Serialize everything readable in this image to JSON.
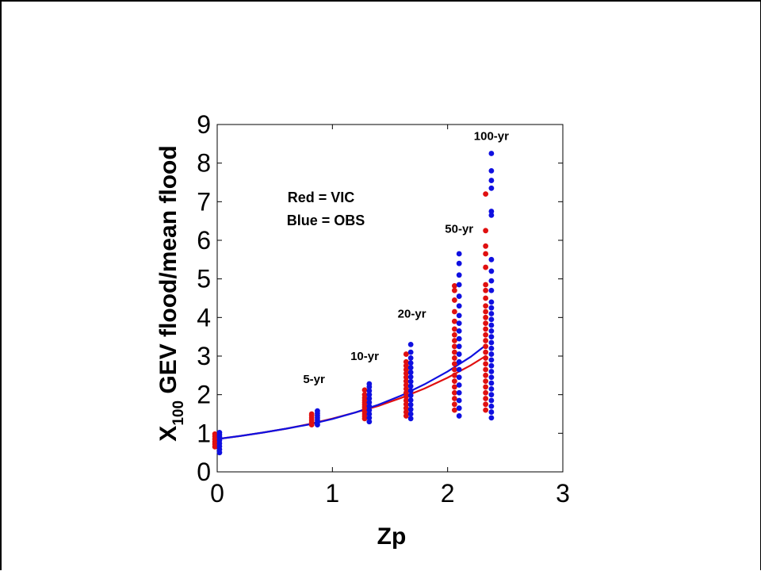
{
  "chart_data": {
    "type": "scatter",
    "xlabel": "Zp",
    "ylabel_main": "X",
    "ylabel_sub": "100",
    "ylabel_rest": " GEV flood/mean flood",
    "xlim": [
      0,
      3
    ],
    "ylim": [
      0,
      9
    ],
    "x_ticks": [
      "0",
      "1",
      "2",
      "3"
    ],
    "y_ticks": [
      "0",
      "1",
      "2",
      "3",
      "4",
      "5",
      "6",
      "7",
      "8",
      "9"
    ],
    "grid": false,
    "legend": [
      "Red = VIC",
      "Blue = OBS"
    ],
    "legend_placement": "upper-left",
    "colors": {
      "vic": "#e01010",
      "obs": "#1010e0"
    },
    "annotations": [
      {
        "text": "5-yr",
        "x": 0.84,
        "y": 2.3
      },
      {
        "text": "10-yr",
        "x": 1.28,
        "y": 2.9
      },
      {
        "text": "20-yr",
        "x": 1.69,
        "y": 4.0
      },
      {
        "text": "50-yr",
        "x": 2.1,
        "y": 6.2
      },
      {
        "text": "100-yr",
        "x": 2.38,
        "y": 8.6
      }
    ],
    "series": [
      {
        "name": "VIC",
        "color": "#e01010",
        "points": [
          [
            -0.02,
            0.65
          ],
          [
            -0.02,
            0.72
          ],
          [
            -0.02,
            0.78
          ],
          [
            -0.02,
            0.85
          ],
          [
            -0.02,
            0.92
          ],
          [
            -0.02,
            0.98
          ],
          [
            0.82,
            1.22
          ],
          [
            0.82,
            1.28
          ],
          [
            0.82,
            1.34
          ],
          [
            0.82,
            1.4
          ],
          [
            0.82,
            1.46
          ],
          [
            0.82,
            1.5
          ],
          [
            1.28,
            1.38
          ],
          [
            1.28,
            1.44
          ],
          [
            1.28,
            1.5
          ],
          [
            1.28,
            1.56
          ],
          [
            1.28,
            1.62
          ],
          [
            1.28,
            1.68
          ],
          [
            1.28,
            1.74
          ],
          [
            1.28,
            1.8
          ],
          [
            1.28,
            1.86
          ],
          [
            1.28,
            1.92
          ],
          [
            1.28,
            2.0
          ],
          [
            1.28,
            2.12
          ],
          [
            1.64,
            1.45
          ],
          [
            1.64,
            1.55
          ],
          [
            1.64,
            1.65
          ],
          [
            1.64,
            1.75
          ],
          [
            1.64,
            1.85
          ],
          [
            1.64,
            1.95
          ],
          [
            1.64,
            2.05
          ],
          [
            1.64,
            2.15
          ],
          [
            1.64,
            2.25
          ],
          [
            1.64,
            2.35
          ],
          [
            1.64,
            2.45
          ],
          [
            1.64,
            2.55
          ],
          [
            1.64,
            2.65
          ],
          [
            1.64,
            2.75
          ],
          [
            1.64,
            2.85
          ],
          [
            1.64,
            3.05
          ],
          [
            2.06,
            1.6
          ],
          [
            2.06,
            1.75
          ],
          [
            2.06,
            1.9
          ],
          [
            2.06,
            2.05
          ],
          [
            2.06,
            2.2
          ],
          [
            2.06,
            2.35
          ],
          [
            2.06,
            2.5
          ],
          [
            2.06,
            2.65
          ],
          [
            2.06,
            2.8
          ],
          [
            2.06,
            2.95
          ],
          [
            2.06,
            3.1
          ],
          [
            2.06,
            3.25
          ],
          [
            2.06,
            3.4
          ],
          [
            2.06,
            3.55
          ],
          [
            2.06,
            3.7
          ],
          [
            2.06,
            3.9
          ],
          [
            2.06,
            4.15
          ],
          [
            2.06,
            4.45
          ],
          [
            2.06,
            4.7
          ],
          [
            2.06,
            4.82
          ],
          [
            2.33,
            1.6
          ],
          [
            2.33,
            1.75
          ],
          [
            2.33,
            1.9
          ],
          [
            2.33,
            2.05
          ],
          [
            2.33,
            2.2
          ],
          [
            2.33,
            2.35
          ],
          [
            2.33,
            2.5
          ],
          [
            2.33,
            2.65
          ],
          [
            2.33,
            2.8
          ],
          [
            2.33,
            2.95
          ],
          [
            2.33,
            3.1
          ],
          [
            2.33,
            3.25
          ],
          [
            2.33,
            3.4
          ],
          [
            2.33,
            3.55
          ],
          [
            2.33,
            3.7
          ],
          [
            2.33,
            3.85
          ],
          [
            2.33,
            4.0
          ],
          [
            2.33,
            4.15
          ],
          [
            2.33,
            4.3
          ],
          [
            2.33,
            4.5
          ],
          [
            2.33,
            4.7
          ],
          [
            2.33,
            4.85
          ],
          [
            2.33,
            5.3
          ],
          [
            2.33,
            5.65
          ],
          [
            2.33,
            5.85
          ],
          [
            2.33,
            6.25
          ],
          [
            2.33,
            7.2
          ]
        ]
      },
      {
        "name": "OBS",
        "color": "#1010e0",
        "points": [
          [
            0.02,
            0.5
          ],
          [
            0.02,
            0.58
          ],
          [
            0.02,
            0.66
          ],
          [
            0.02,
            0.74
          ],
          [
            0.02,
            0.82
          ],
          [
            0.02,
            0.9
          ],
          [
            0.02,
            0.96
          ],
          [
            0.02,
            1.02
          ],
          [
            0.87,
            1.22
          ],
          [
            0.87,
            1.28
          ],
          [
            0.87,
            1.34
          ],
          [
            0.87,
            1.4
          ],
          [
            0.87,
            1.46
          ],
          [
            0.87,
            1.52
          ],
          [
            0.87,
            1.58
          ],
          [
            1.32,
            1.3
          ],
          [
            1.32,
            1.4
          ],
          [
            1.32,
            1.5
          ],
          [
            1.32,
            1.6
          ],
          [
            1.32,
            1.7
          ],
          [
            1.32,
            1.8
          ],
          [
            1.32,
            1.9
          ],
          [
            1.32,
            2.0
          ],
          [
            1.32,
            2.1
          ],
          [
            1.32,
            2.2
          ],
          [
            1.32,
            2.28
          ],
          [
            1.68,
            1.38
          ],
          [
            1.68,
            1.5
          ],
          [
            1.68,
            1.62
          ],
          [
            1.68,
            1.74
          ],
          [
            1.68,
            1.86
          ],
          [
            1.68,
            1.98
          ],
          [
            1.68,
            2.1
          ],
          [
            1.68,
            2.22
          ],
          [
            1.68,
            2.34
          ],
          [
            1.68,
            2.46
          ],
          [
            1.68,
            2.58
          ],
          [
            1.68,
            2.7
          ],
          [
            1.68,
            2.82
          ],
          [
            1.68,
            2.95
          ],
          [
            1.68,
            3.1
          ],
          [
            1.68,
            3.3
          ],
          [
            2.1,
            1.45
          ],
          [
            2.1,
            1.65
          ],
          [
            2.1,
            1.85
          ],
          [
            2.1,
            2.05
          ],
          [
            2.1,
            2.25
          ],
          [
            2.1,
            2.45
          ],
          [
            2.1,
            2.65
          ],
          [
            2.1,
            2.85
          ],
          [
            2.1,
            3.05
          ],
          [
            2.1,
            3.25
          ],
          [
            2.1,
            3.45
          ],
          [
            2.1,
            3.65
          ],
          [
            2.1,
            3.85
          ],
          [
            2.1,
            4.05
          ],
          [
            2.1,
            4.3
          ],
          [
            2.1,
            4.55
          ],
          [
            2.1,
            4.85
          ],
          [
            2.1,
            5.1
          ],
          [
            2.1,
            5.4
          ],
          [
            2.1,
            5.65
          ],
          [
            2.38,
            1.4
          ],
          [
            2.38,
            1.55
          ],
          [
            2.38,
            1.7
          ],
          [
            2.38,
            1.85
          ],
          [
            2.38,
            2.0
          ],
          [
            2.38,
            2.15
          ],
          [
            2.38,
            2.3
          ],
          [
            2.38,
            2.45
          ],
          [
            2.38,
            2.6
          ],
          [
            2.38,
            2.75
          ],
          [
            2.38,
            2.9
          ],
          [
            2.38,
            3.05
          ],
          [
            2.38,
            3.2
          ],
          [
            2.38,
            3.35
          ],
          [
            2.38,
            3.5
          ],
          [
            2.38,
            3.65
          ],
          [
            2.38,
            3.8
          ],
          [
            2.38,
            3.95
          ],
          [
            2.38,
            4.1
          ],
          [
            2.38,
            4.25
          ],
          [
            2.38,
            4.4
          ],
          [
            2.38,
            4.7
          ],
          [
            2.38,
            4.95
          ],
          [
            2.38,
            5.2
          ],
          [
            2.38,
            5.5
          ],
          [
            2.38,
            6.65
          ],
          [
            2.38,
            6.75
          ],
          [
            2.38,
            7.35
          ],
          [
            2.38,
            7.55
          ],
          [
            2.38,
            7.8
          ],
          [
            2.38,
            8.25
          ]
        ]
      }
    ],
    "fit_lines": [
      {
        "name": "VIC",
        "color": "#e01010",
        "x": [
          0.0,
          0.2,
          0.4,
          0.6,
          0.8,
          1.0,
          1.2,
          1.4,
          1.6,
          1.8,
          2.0,
          2.2,
          2.33
        ],
        "y": [
          0.85,
          0.93,
          1.02,
          1.12,
          1.24,
          1.38,
          1.54,
          1.71,
          1.92,
          2.16,
          2.44,
          2.76,
          3.0
        ]
      },
      {
        "name": "OBS",
        "color": "#1010e0",
        "x": [
          0.0,
          0.2,
          0.4,
          0.6,
          0.8,
          1.0,
          1.2,
          1.4,
          1.6,
          1.8,
          2.0,
          2.2,
          2.33
        ],
        "y": [
          0.85,
          0.93,
          1.02,
          1.12,
          1.23,
          1.37,
          1.54,
          1.74,
          1.98,
          2.27,
          2.6,
          2.98,
          3.28
        ]
      }
    ]
  }
}
